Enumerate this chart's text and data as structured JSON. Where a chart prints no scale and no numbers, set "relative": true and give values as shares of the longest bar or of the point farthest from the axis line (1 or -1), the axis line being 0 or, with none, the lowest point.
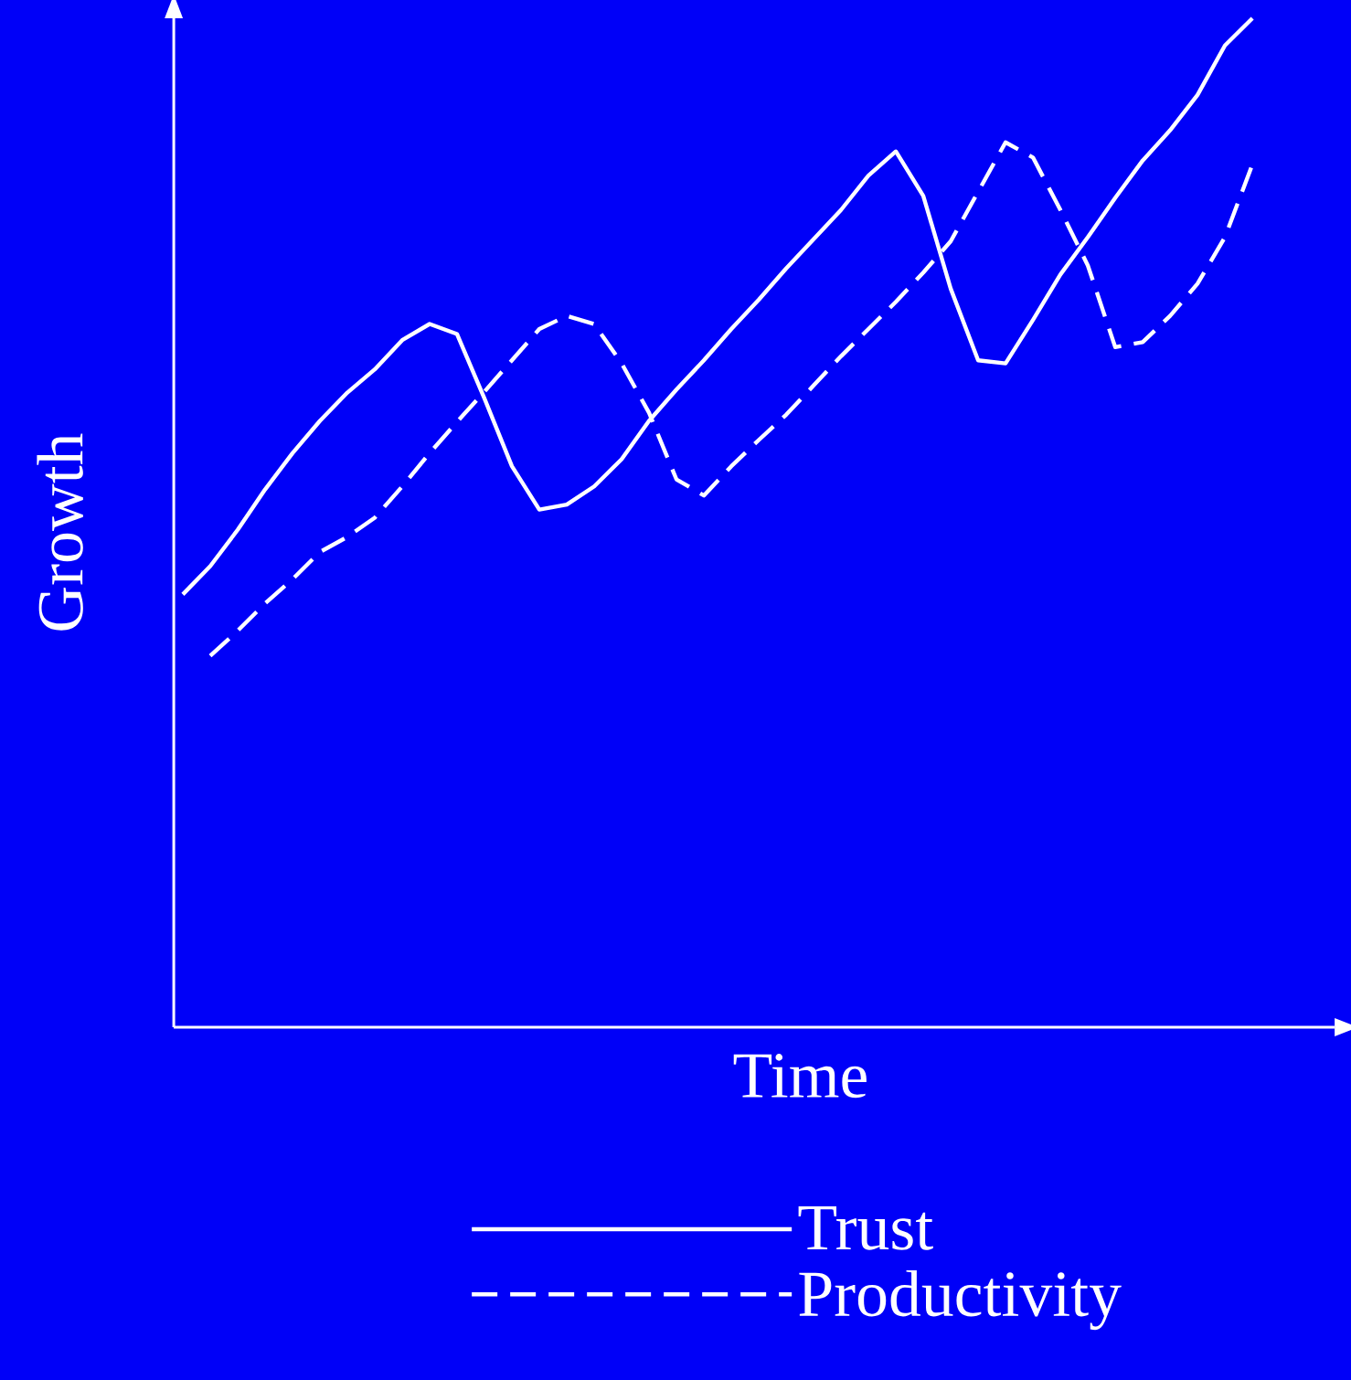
{
  "chart_data": {
    "type": "line",
    "relative": true,
    "xlabel": "Time",
    "ylabel": "Growth",
    "legend": "bottom",
    "categories": [
      null,
      null,
      null,
      null,
      null,
      null,
      null,
      null,
      null,
      null,
      null,
      null,
      null,
      null,
      null,
      null,
      null,
      null,
      null,
      null,
      null,
      null,
      null,
      null,
      null,
      null,
      null,
      null,
      null,
      null,
      null,
      null,
      null,
      null,
      null,
      null,
      null,
      null,
      null,
      null
    ],
    "series": [
      {
        "name": "Trust",
        "color": "#ffffff",
        "line_style": "solid",
        "values": [
          0.429,
          0.457,
          0.493,
          0.533,
          0.569,
          0.601,
          0.629,
          0.652,
          0.681,
          0.697,
          0.687,
          0.623,
          0.556,
          0.513,
          0.518,
          0.536,
          0.563,
          0.601,
          0.632,
          0.661,
          0.692,
          0.721,
          0.752,
          0.781,
          0.81,
          0.844,
          0.868,
          0.824,
          0.732,
          0.661,
          0.658,
          0.701,
          0.746,
          0.783,
          0.822,
          0.859,
          0.889,
          0.924,
          0.973,
          1.0
        ]
      },
      {
        "name": "Productivity",
        "color": "#ffffff",
        "line_style": "dashed",
        "values": [
          null,
          0.368,
          0.393,
          0.42,
          0.444,
          0.471,
          0.486,
          0.505,
          0.536,
          0.569,
          0.6,
          0.63,
          0.661,
          0.692,
          0.705,
          0.697,
          0.658,
          0.609,
          0.543,
          0.527,
          0.556,
          0.582,
          0.607,
          0.636,
          0.665,
          0.692,
          0.719,
          0.748,
          0.779,
          0.828,
          0.877,
          0.862,
          0.81,
          0.755,
          0.674,
          0.679,
          0.705,
          0.737,
          0.783,
          0.855
        ]
      }
    ]
  }
}
